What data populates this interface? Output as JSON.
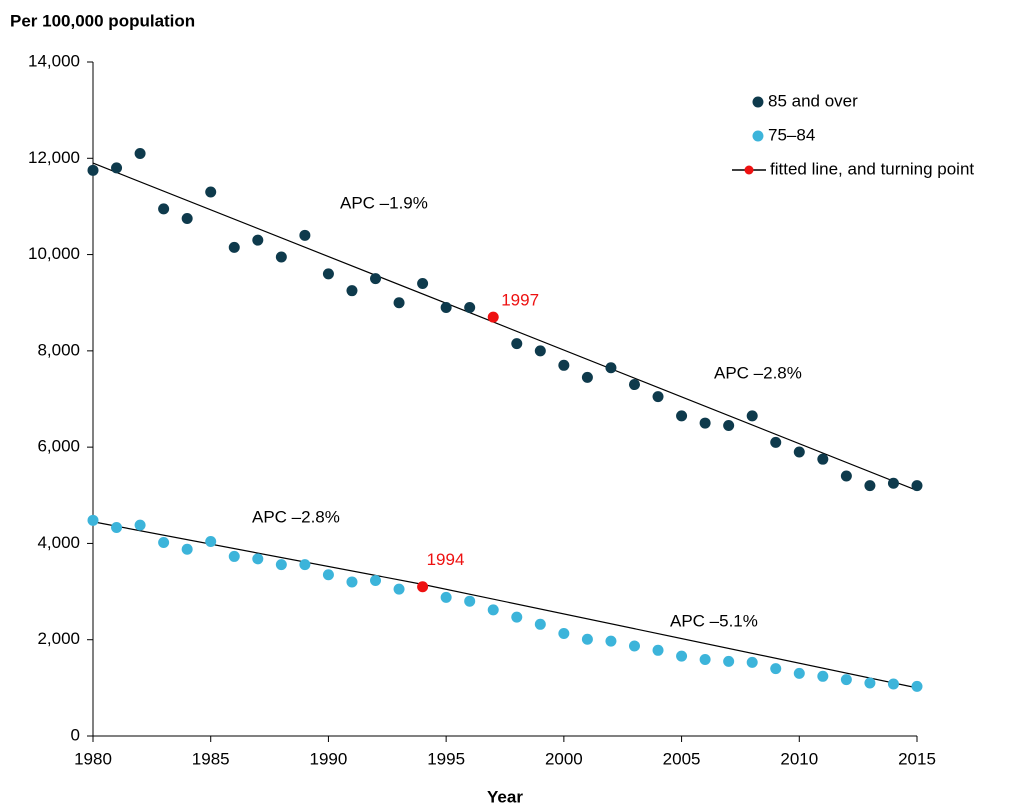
{
  "chart_data": {
    "type": "scatter",
    "title": "Per 100,000 population",
    "x_label": "Year",
    "xlim": [
      1980,
      2015
    ],
    "xticks": [
      1980,
      1985,
      1990,
      1995,
      2000,
      2005,
      2010,
      2015
    ],
    "ylim": [
      0,
      14000
    ],
    "yticks": [
      0,
      {
        "value": 2000,
        "label": "2,000"
      },
      {
        "value": 4000,
        "label": "4,000"
      },
      {
        "value": 6000,
        "label": "6,000"
      },
      {
        "value": 8000,
        "label": "8,000"
      },
      {
        "value": 10000,
        "label": "10,000"
      },
      {
        "value": 12000,
        "label": "12,000"
      },
      {
        "value": 14000,
        "label": "14,000"
      }
    ],
    "x": [
      1980,
      1981,
      1982,
      1983,
      1984,
      1985,
      1986,
      1987,
      1988,
      1989,
      1990,
      1991,
      1992,
      1993,
      1994,
      1995,
      1996,
      1997,
      1998,
      1999,
      2000,
      2001,
      2002,
      2003,
      2004,
      2005,
      2006,
      2007,
      2008,
      2009,
      2010,
      2011,
      2012,
      2013,
      2014,
      2015
    ],
    "turning_color": "#ee1111",
    "fit_color": "#000000",
    "fit_legend": "fitted line, and turning point",
    "legend": "top-right",
    "series": [
      {
        "name": "85 and over",
        "color": "#0e3a4c",
        "values": [
          11750,
          11800,
          12100,
          10950,
          10750,
          11300,
          10150,
          10300,
          9950,
          10400,
          9600,
          9250,
          9500,
          9000,
          9400,
          8900,
          8900,
          8700,
          8150,
          8000,
          7700,
          7450,
          7650,
          7300,
          7050,
          6650,
          6500,
          6450,
          6650,
          6100,
          5900,
          5750,
          5400,
          5200,
          5250,
          5200
        ],
        "turning_point": 1997,
        "fit": {
          "x": [
            1980,
            1997,
            2015
          ],
          "values": [
            11900,
            8600,
            5100
          ]
        },
        "annotations": [
          "APC –1.9%",
          "APC –2.8%"
        ]
      },
      {
        "name": "75–84",
        "color": "#3cb4da",
        "values": [
          4480,
          4330,
          4380,
          4020,
          3880,
          4040,
          3730,
          3680,
          3560,
          3560,
          3350,
          3200,
          3230,
          3050,
          3100,
          2880,
          2800,
          2620,
          2470,
          2320,
          2130,
          2010,
          1970,
          1870,
          1780,
          1660,
          1590,
          1550,
          1530,
          1400,
          1300,
          1240,
          1170,
          1100,
          1080,
          1030
        ],
        "turning_point": 1994,
        "fit": {
          "x": [
            1980,
            1994,
            2015
          ],
          "values": [
            4450,
            3150,
            1000
          ]
        },
        "annotations": [
          "APC –2.8%",
          "APC –5.1%"
        ]
      }
    ]
  }
}
